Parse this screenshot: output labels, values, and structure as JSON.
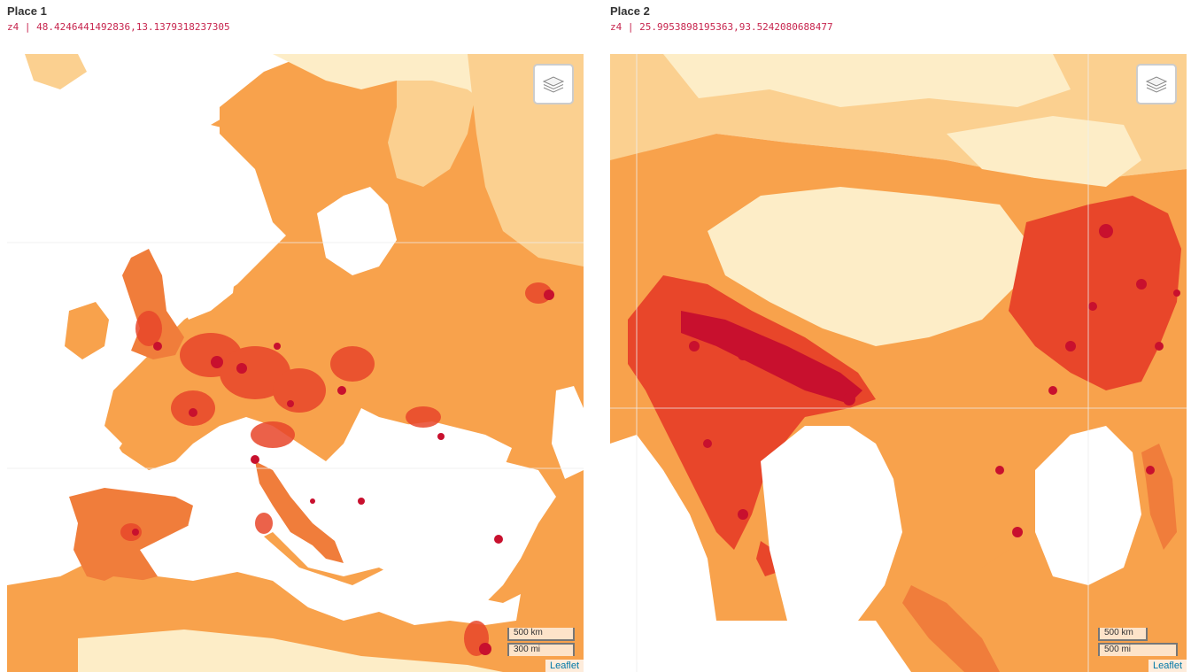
{
  "colors": {
    "ocean": "#ffffff",
    "sparse": "#fdedc7",
    "low": "#fbd090",
    "medium": "#f8a24c",
    "high": "#f07d3b",
    "very_high": "#e8462a",
    "dense": "#c8102e",
    "coords_text": "#c7254e"
  },
  "panels": [
    {
      "title": "Place 1",
      "coords": "z4 | 48.4246441492836,13.1379318237305",
      "layers_icon": "layers-icon",
      "scale": {
        "km": "500 km",
        "mi": "300 mi"
      },
      "attribution": "Leaflet"
    },
    {
      "title": "Place 2",
      "coords": "z4 | 25.9953898195363,93.5242080688477",
      "layers_icon": "layers-icon",
      "scale": {
        "km": "500 km",
        "mi": "500 mi"
      },
      "attribution": "Leaflet"
    }
  ]
}
